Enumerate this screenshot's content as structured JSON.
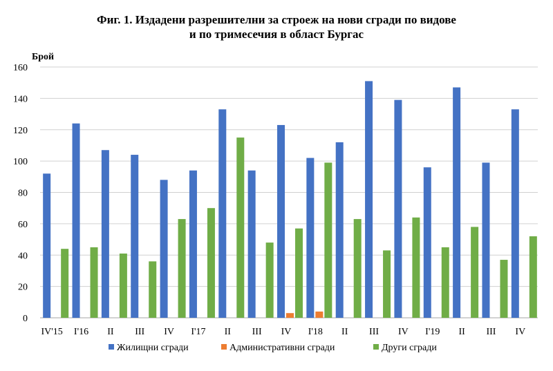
{
  "chart_data": {
    "type": "bar",
    "title_line1": "Фиг. 1. Издадени разрешителни за строеж на нови сгради по видове",
    "title_line2": "и по тримесечия в област Бургас",
    "ylabel": "Брой",
    "ylim": [
      0,
      160
    ],
    "yticks": [
      0,
      20,
      40,
      60,
      80,
      100,
      120,
      140,
      160
    ],
    "grid": true,
    "legend_position": "bottom",
    "categories": [
      "IV'15",
      "I'16",
      "II",
      "III",
      "IV",
      "I'17",
      "II",
      "III",
      "IV",
      "I'18",
      "II",
      "III",
      "IV",
      "I'19",
      "II",
      "III",
      "IV"
    ],
    "series": [
      {
        "name": "Жилищни сгради",
        "color": "#4472C4",
        "values": [
          92,
          124,
          107,
          104,
          88,
          94,
          133,
          94,
          123,
          102,
          112,
          151,
          139,
          96,
          147,
          99,
          133
        ]
      },
      {
        "name": "Административни сгради",
        "color": "#ED7D31",
        "values": [
          0,
          0,
          0,
          0,
          0,
          0,
          0,
          0,
          3,
          4,
          0,
          0,
          0,
          0,
          0,
          0,
          0
        ]
      },
      {
        "name": "Други сгради",
        "color": "#70AD47",
        "values": [
          44,
          45,
          41,
          36,
          63,
          70,
          115,
          48,
          57,
          99,
          63,
          43,
          64,
          45,
          58,
          37,
          52
        ]
      }
    ]
  }
}
